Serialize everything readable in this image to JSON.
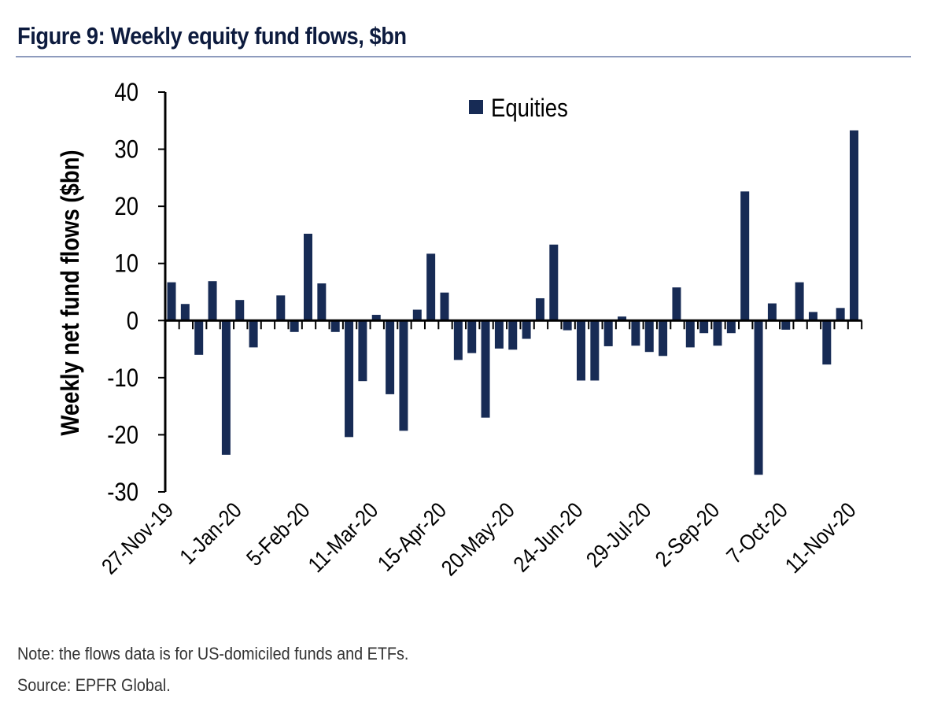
{
  "title": "Figure 9: Weekly equity fund flows, $bn",
  "notes": {
    "note": "Note: the flows data is for US-domiciled funds and ETFs.",
    "source": "Source: EPFR Global."
  },
  "colors": {
    "bar": "#172b55",
    "axis": "#000000",
    "title": "#0d1b3e",
    "rule": "#8e9bbd"
  },
  "chart_data": {
    "type": "bar",
    "title": "Figure 9: Weekly equity fund flows, $bn",
    "xlabel": "",
    "ylabel": "Weekly net fund flows ($bn)",
    "ylim": [
      -30,
      40
    ],
    "yticks": [
      40,
      30,
      20,
      10,
      0,
      -10,
      -20,
      -30
    ],
    "legend": {
      "position": "top-center",
      "entries": [
        "Equities"
      ]
    },
    "grid": false,
    "first_week": "27-Nov-19",
    "frequency": "weekly",
    "xtick_labels": [
      "27-Nov-19",
      "1-Jan-20",
      "5-Feb-20",
      "11-Mar-20",
      "15-Apr-20",
      "20-May-20",
      "24-Jun-20",
      "29-Jul-20",
      "2-Sep-20",
      "7-Oct-20",
      "11-Nov-20"
    ],
    "xtick_every": 5,
    "series": [
      {
        "name": "Equities",
        "values": [
          6.7,
          2.9,
          -6.0,
          6.9,
          -23.5,
          3.6,
          -4.7,
          0,
          4.4,
          -2.0,
          15.2,
          6.5,
          -2.0,
          -20.4,
          -10.6,
          1.0,
          -12.9,
          -19.3,
          1.9,
          11.7,
          4.9,
          -6.9,
          -5.7,
          -17.0,
          -4.9,
          -5.1,
          -3.2,
          3.9,
          13.3,
          -1.7,
          -10.5,
          -10.5,
          -4.5,
          0.7,
          -4.4,
          -5.5,
          -6.2,
          5.8,
          -4.7,
          -2.2,
          -4.4,
          -2.2,
          22.6,
          -27.0,
          3.0,
          -1.6,
          6.7,
          1.5,
          -7.7,
          2.2,
          33.3
        ]
      }
    ]
  }
}
